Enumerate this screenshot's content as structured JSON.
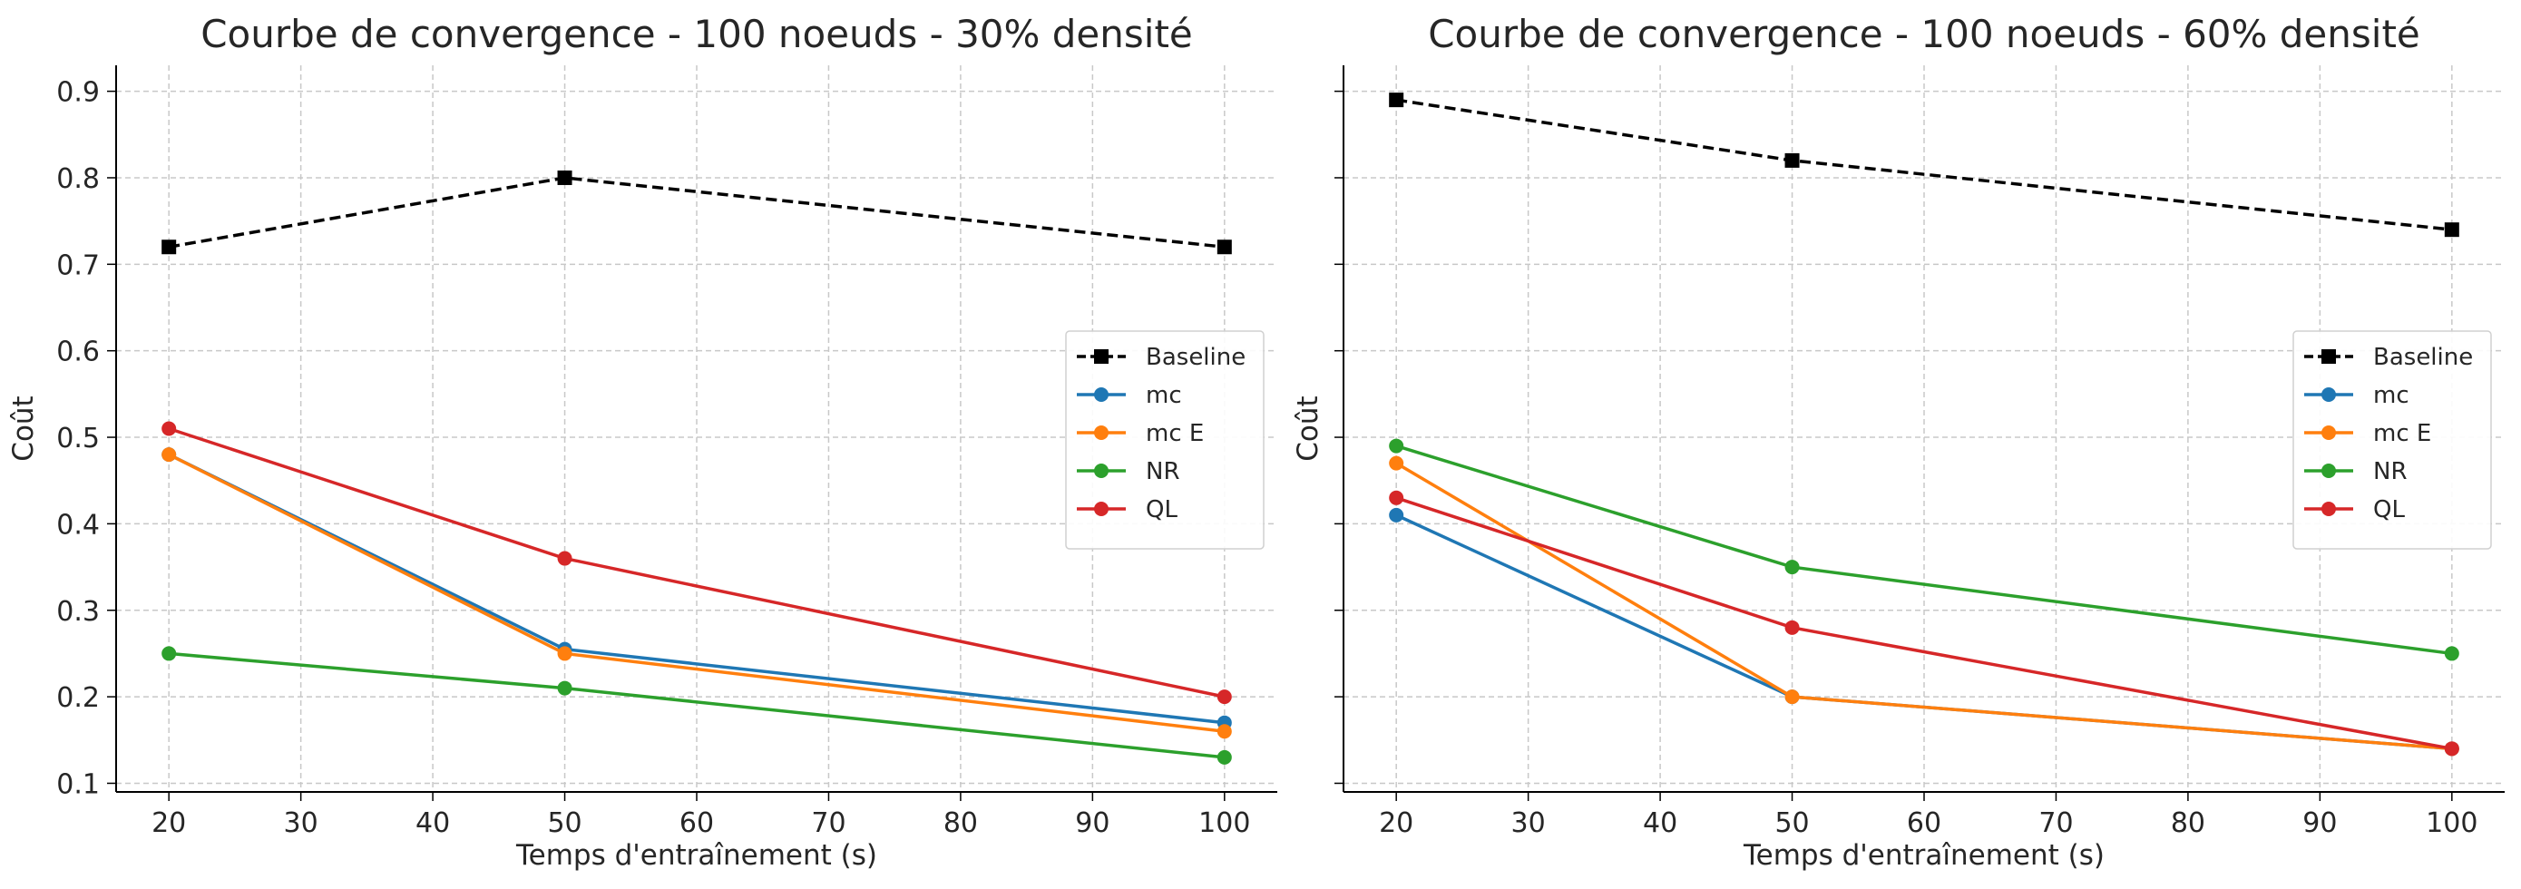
{
  "chart_data": [
    {
      "type": "line",
      "title": "Courbe de convergence - 100 noeuds - 30% densité",
      "xlabel": "Temps d'entraînement (s)",
      "ylabel": "Coût",
      "x": [
        20,
        50,
        100
      ],
      "xlim": [
        16,
        104
      ],
      "ylim": [
        0.09,
        0.93
      ],
      "xticks": [
        "20",
        "30",
        "40",
        "50",
        "60",
        "70",
        "80",
        "90",
        "100"
      ],
      "yticks": [
        "0.1",
        "0.2",
        "0.3",
        "0.4",
        "0.5",
        "0.6",
        "0.7",
        "0.8",
        "0.9"
      ],
      "grid": true,
      "legend_position": "center-right",
      "series": [
        {
          "name": "Baseline",
          "values": [
            0.72,
            0.8,
            0.72
          ],
          "color": "#000000",
          "marker": "square",
          "dashed": true
        },
        {
          "name": "mc",
          "values": [
            0.48,
            0.255,
            0.17
          ],
          "color": "#1f77b4",
          "marker": "circle",
          "dashed": false
        },
        {
          "name": "mc E",
          "values": [
            0.48,
            0.25,
            0.16
          ],
          "color": "#ff7f0e",
          "marker": "circle",
          "dashed": false
        },
        {
          "name": "NR",
          "values": [
            0.25,
            0.21,
            0.13
          ],
          "color": "#2ca02c",
          "marker": "circle",
          "dashed": false
        },
        {
          "name": "QL",
          "values": [
            0.51,
            0.36,
            0.2
          ],
          "color": "#d62728",
          "marker": "circle",
          "dashed": false
        }
      ]
    },
    {
      "type": "line",
      "title": "Courbe de convergence - 100 noeuds - 60% densité",
      "xlabel": "Temps d'entraînement (s)",
      "ylabel": "Coût",
      "x": [
        20,
        50,
        100
      ],
      "xlim": [
        16,
        104
      ],
      "ylim": [
        0.09,
        0.93
      ],
      "xticks": [
        "20",
        "30",
        "40",
        "50",
        "60",
        "70",
        "80",
        "90",
        "100"
      ],
      "yticks": [],
      "grid": true,
      "legend_position": "center-right",
      "series": [
        {
          "name": "Baseline",
          "values": [
            0.89,
            0.82,
            0.74
          ],
          "color": "#000000",
          "marker": "square",
          "dashed": true
        },
        {
          "name": "mc",
          "values": [
            0.41,
            0.2,
            0.14
          ],
          "color": "#1f77b4",
          "marker": "circle",
          "dashed": false
        },
        {
          "name": "mc E",
          "values": [
            0.47,
            0.2,
            0.14
          ],
          "color": "#ff7f0e",
          "marker": "circle",
          "dashed": false
        },
        {
          "name": "NR",
          "values": [
            0.49,
            0.35,
            0.25
          ],
          "color": "#2ca02c",
          "marker": "circle",
          "dashed": false
        },
        {
          "name": "QL",
          "values": [
            0.43,
            0.28,
            0.14
          ],
          "color": "#d62728",
          "marker": "circle",
          "dashed": false
        }
      ]
    }
  ]
}
